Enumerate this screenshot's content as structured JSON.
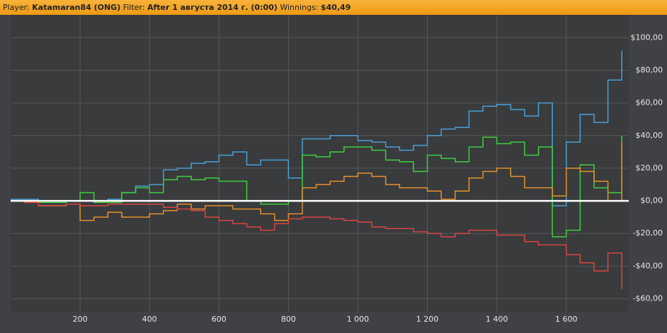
{
  "header": {
    "player_label": "Player:",
    "player": "Katamaran84 (ONG)",
    "filter_label": "Filter:",
    "filter": "After 1 августа 2014 г. (0:00)",
    "winnings_label": "Winnings:",
    "winnings": "$40,49"
  },
  "chart_data": {
    "type": "line",
    "x": [
      0,
      40,
      80,
      120,
      160,
      200,
      240,
      280,
      320,
      360,
      400,
      440,
      480,
      520,
      560,
      600,
      640,
      680,
      720,
      760,
      800,
      840,
      880,
      920,
      960,
      1000,
      1040,
      1080,
      1120,
      1160,
      1200,
      1240,
      1280,
      1320,
      1360,
      1400,
      1440,
      1480,
      1520,
      1560,
      1600,
      1640,
      1680,
      1720,
      1760
    ],
    "series": [
      {
        "color": "#4a9fd8",
        "values": [
          1,
          1,
          0,
          0,
          0,
          0,
          0,
          1,
          5,
          9,
          10,
          19,
          20,
          23,
          24,
          28,
          30,
          22,
          25,
          25,
          14,
          38,
          38,
          40,
          40,
          37,
          36,
          33,
          31,
          34,
          40,
          44,
          45,
          55,
          58,
          59,
          56,
          52,
          60,
          -3,
          36,
          53,
          48,
          74,
          92
        ]
      },
      {
        "color": "#3ecf3e",
        "values": [
          0,
          0,
          -1,
          -1,
          0,
          5,
          -1,
          -1,
          5,
          8,
          5,
          13,
          15,
          13,
          14,
          12,
          12,
          0,
          -2,
          -2,
          0,
          28,
          27,
          30,
          33,
          33,
          31,
          25,
          24,
          18,
          28,
          26,
          24,
          33,
          39,
          35,
          36,
          28,
          33,
          -22,
          -18,
          22,
          8,
          5,
          40
        ]
      },
      {
        "color": "#e8902a",
        "values": [
          0,
          -1,
          -3,
          -3,
          -2,
          -12,
          -10,
          -7,
          -10,
          -10,
          -8,
          -6,
          -2,
          -5,
          -3,
          -3,
          -5,
          -5,
          -8,
          -12,
          -8,
          8,
          10,
          12,
          15,
          17,
          15,
          10,
          8,
          8,
          6,
          1,
          6,
          14,
          18,
          20,
          15,
          8,
          8,
          3,
          20,
          18,
          12,
          0,
          36
        ]
      },
      {
        "color": "#d9463f",
        "values": [
          0,
          -1,
          -3,
          -3,
          -2,
          -3,
          -3,
          -2,
          -2,
          -2,
          -2,
          -4,
          -5,
          -6,
          -10,
          -12,
          -14,
          -16,
          -18,
          -14,
          -11,
          -10,
          -10,
          -11,
          -12,
          -13,
          -16,
          -17,
          -17,
          -19,
          -20,
          -22,
          -20,
          -18,
          -18,
          -21,
          -21,
          -25,
          -27,
          -27,
          -33,
          -38,
          -43,
          -32,
          -54
        ]
      }
    ],
    "xlim": [
      0,
      1780
    ],
    "ylim": [
      -68,
      114
    ],
    "xticks": [
      200,
      400,
      600,
      800,
      {
        "value": 1000,
        "label": "1 000"
      },
      {
        "value": 1200,
        "label": "1 200"
      },
      {
        "value": 1400,
        "label": "1 400"
      },
      {
        "value": 1600,
        "label": "1 600"
      }
    ],
    "yticks": [
      {
        "value": 100,
        "label": "$100,00"
      },
      {
        "value": 80,
        "label": "$80,00"
      },
      {
        "value": 60,
        "label": "$60,00"
      },
      {
        "value": 40,
        "label": "$40,00"
      },
      {
        "value": 20,
        "label": "$20,00"
      },
      {
        "value": 0,
        "label": "$0,00"
      },
      {
        "value": -20,
        "label": "-$20,00"
      },
      {
        "value": -40,
        "label": "-$40,00"
      },
      {
        "value": -60,
        "label": "-$60,00"
      }
    ],
    "grid": true
  }
}
